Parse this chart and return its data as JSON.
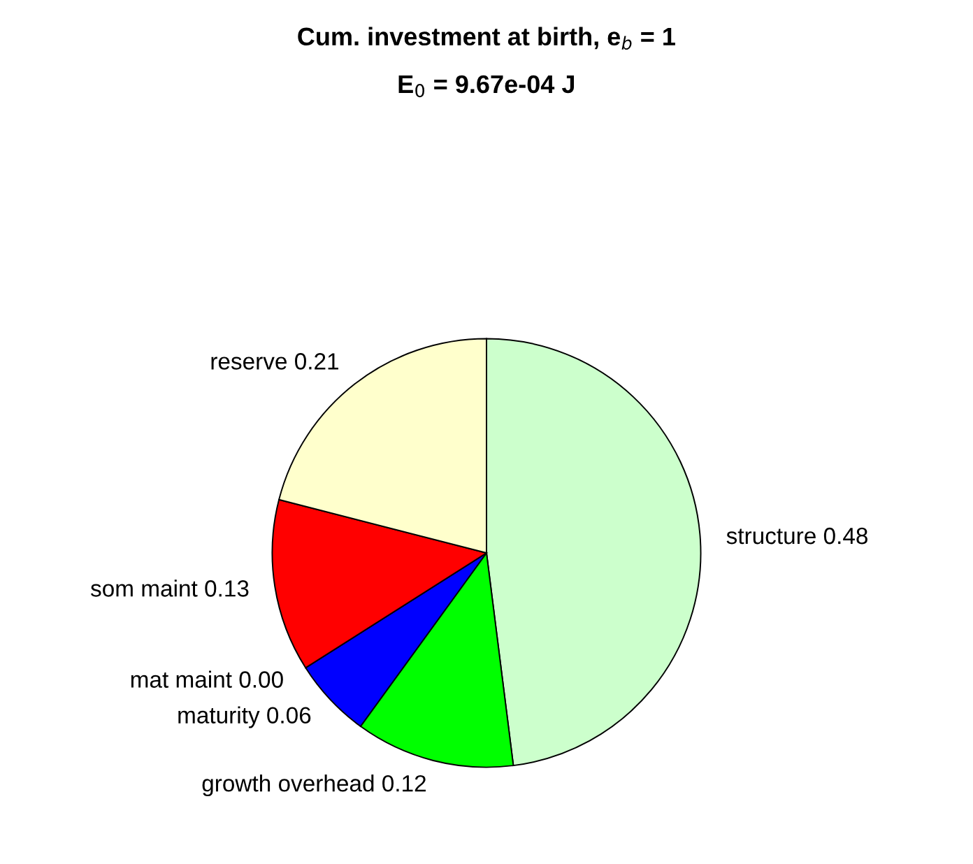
{
  "chart_data": {
    "type": "pie",
    "title": "Cum. investment at birth, e$_{b}$ = 1",
    "subtitle": "E$_{0}$ = 9.67e-04 J",
    "categories": [
      "structure",
      "growth overhead",
      "maturity",
      "mat maint",
      "som maint",
      "reserve"
    ],
    "values": [
      0.48,
      0.12,
      0.06,
      0.0,
      0.13,
      0.21
    ],
    "value_labels": [
      "0.48",
      "0.12",
      "0.06",
      "0.00",
      "0.13",
      "0.21"
    ],
    "colors": [
      "#ccffcc",
      "#00ff00",
      "#0000ff",
      "#ff00ff",
      "#ff0000",
      "#ffffcc"
    ],
    "legend": false
  }
}
